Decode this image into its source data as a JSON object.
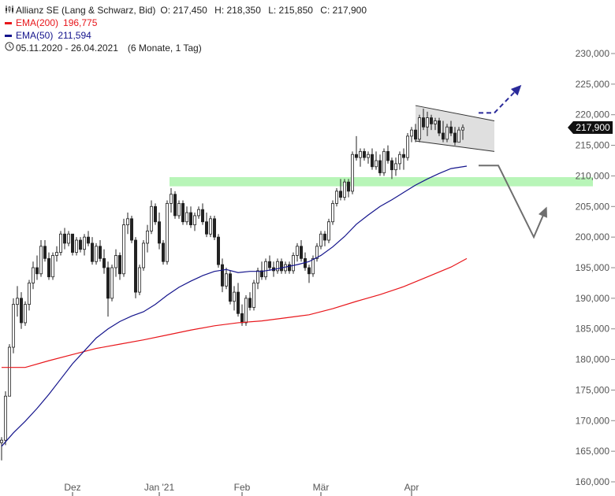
{
  "legend": {
    "instrument": "Allianz SE (Lang & Schwarz, Bid)",
    "ohlc": {
      "o": "O: 217,450",
      "h": "H: 218,350",
      "l": "L: 215,850",
      "c": "C: 217,900"
    },
    "ema200_label": "EMA(200)",
    "ema200_value": "196,775",
    "ema50_label": "EMA(50)",
    "ema50_value": "211,594",
    "period": "05.11.2020 - 26.04.2021",
    "interval": "(6 Monate, 1 Tag)",
    "icons": [
      "candlestick-icon",
      "clock-icon"
    ]
  },
  "colors": {
    "ema200": "#e8161b",
    "ema50": "#14148c",
    "candle": "#222222",
    "support_zone": "#b8f5b8",
    "channel": "#d9d9d9",
    "bull_arrow": "#2a2a9a",
    "bear_arrow": "#6e6e6e",
    "price_tag_bg": "#111111",
    "price_tag_text": "#ffffff"
  },
  "chart_data": {
    "type": "line",
    "title": "Allianz SE (Lang & Schwarz, Bid)",
    "xlabel": "",
    "ylabel": "",
    "ylim": [
      160000,
      230000
    ],
    "yticks": [
      {
        "value": 160000,
        "label": "160,000"
      },
      {
        "value": 165000,
        "label": "165,000"
      },
      {
        "value": 170000,
        "label": "170,000"
      },
      {
        "value": 175000,
        "label": "175,000"
      },
      {
        "value": 180000,
        "label": "180,000"
      },
      {
        "value": 185000,
        "label": "185,000"
      },
      {
        "value": 190000,
        "label": "190,000"
      },
      {
        "value": 195000,
        "label": "195,000"
      },
      {
        "value": 200000,
        "label": "200,000"
      },
      {
        "value": 205000,
        "label": "205,000"
      },
      {
        "value": 210000,
        "label": "210,000"
      },
      {
        "value": 215000,
        "label": "215,000"
      },
      {
        "value": 220000,
        "label": "220,000"
      },
      {
        "value": 225000,
        "label": "225,000"
      },
      {
        "value": 230000,
        "label": "230,000"
      }
    ],
    "xticks": [
      {
        "index": 18,
        "label": "Dez"
      },
      {
        "index": 40,
        "label": "Jan '21"
      },
      {
        "index": 61,
        "label": "Feb"
      },
      {
        "index": 81,
        "label": "Mär"
      },
      {
        "index": 104,
        "label": "Apr"
      }
    ],
    "n_days": 118,
    "price_tag": {
      "value": 217900,
      "label": "217,900"
    },
    "candles": [
      [
        166.4,
        167.3,
        163.5,
        166.8
      ],
      [
        166.8,
        174.8,
        166.0,
        174.0
      ],
      [
        174.0,
        182.5,
        174.0,
        182.0
      ],
      [
        182.0,
        190.0,
        181.0,
        189.0
      ],
      [
        189.0,
        192.0,
        187.0,
        190.0
      ],
      [
        190.0,
        191.0,
        185.0,
        186.0
      ],
      [
        186.0,
        189.5,
        185.5,
        189.0
      ],
      [
        189.0,
        193.0,
        188.0,
        192.5
      ],
      [
        192.5,
        196.0,
        191.5,
        195.0
      ],
      [
        195.0,
        197.0,
        193.0,
        194.0
      ],
      [
        194.0,
        199.5,
        193.5,
        198.5
      ],
      [
        198.5,
        199.5,
        196.0,
        196.5
      ],
      [
        196.5,
        197.5,
        193.0,
        193.5
      ],
      [
        193.5,
        197.5,
        193.0,
        197.0
      ],
      [
        197.0,
        198.5,
        196.0,
        197.5
      ],
      [
        197.5,
        201.0,
        197.0,
        200.5
      ],
      [
        200.5,
        201.5,
        198.0,
        199.0
      ],
      [
        199.0,
        201.0,
        198.5,
        200.5
      ],
      [
        200.5,
        200.5,
        197.0,
        197.5
      ],
      [
        197.5,
        200.0,
        197.0,
        199.5
      ],
      [
        199.5,
        200.0,
        197.5,
        198.0
      ],
      [
        198.0,
        200.5,
        197.0,
        200.0
      ],
      [
        200.0,
        201.0,
        198.5,
        199.0
      ],
      [
        199.0,
        200.0,
        195.5,
        196.0
      ],
      [
        196.0,
        199.0,
        195.5,
        198.5
      ],
      [
        198.5,
        199.5,
        196.0,
        196.5
      ],
      [
        196.5,
        198.0,
        194.0,
        195.0
      ],
      [
        195.0,
        196.0,
        187.0,
        190.0
      ],
      [
        190.0,
        195.5,
        189.5,
        195.0
      ],
      [
        195.0,
        198.0,
        193.5,
        197.0
      ],
      [
        197.0,
        197.5,
        193.0,
        194.0
      ],
      [
        194.0,
        203.0,
        193.5,
        202.0
      ],
      [
        202.0,
        204.0,
        200.5,
        203.0
      ],
      [
        203.0,
        203.5,
        199.0,
        199.5
      ],
      [
        199.5,
        200.0,
        190.0,
        191.0
      ],
      [
        191.0,
        195.5,
        190.5,
        195.0
      ],
      [
        195.0,
        199.5,
        194.5,
        199.0
      ],
      [
        199.0,
        202.0,
        197.5,
        201.0
      ],
      [
        201.0,
        206.0,
        200.5,
        205.0
      ],
      [
        205.0,
        205.5,
        202.0,
        202.5
      ],
      [
        202.5,
        204.0,
        198.0,
        199.0
      ],
      [
        199.0,
        199.5,
        195.5,
        196.0
      ],
      [
        196.0,
        206.0,
        195.5,
        205.5
      ],
      [
        205.5,
        208.0,
        204.0,
        207.0
      ],
      [
        207.0,
        207.5,
        203.0,
        203.5
      ],
      [
        203.5,
        206.0,
        203.0,
        205.5
      ],
      [
        205.5,
        206.0,
        202.0,
        202.5
      ],
      [
        202.5,
        205.0,
        202.0,
        204.0
      ],
      [
        204.0,
        205.0,
        201.5,
        202.0
      ],
      [
        202.0,
        204.0,
        201.0,
        203.5
      ],
      [
        203.5,
        205.0,
        203.0,
        204.5
      ],
      [
        204.5,
        205.5,
        202.0,
        202.5
      ],
      [
        202.5,
        204.0,
        200.0,
        200.5
      ],
      [
        200.5,
        203.5,
        200.0,
        203.0
      ],
      [
        203.0,
        203.5,
        199.5,
        200.0
      ],
      [
        200.0,
        200.5,
        195.0,
        195.5
      ],
      [
        195.5,
        196.5,
        191.0,
        192.0
      ],
      [
        192.0,
        195.0,
        191.5,
        194.0
      ],
      [
        194.0,
        194.5,
        189.0,
        189.5
      ],
      [
        189.5,
        192.0,
        188.0,
        191.0
      ],
      [
        191.0,
        192.5,
        187.0,
        187.5
      ],
      [
        187.5,
        189.0,
        185.5,
        186.0
      ],
      [
        186.0,
        190.5,
        185.5,
        190.0
      ],
      [
        190.0,
        191.0,
        188.0,
        188.5
      ],
      [
        188.5,
        193.0,
        188.0,
        192.5
      ],
      [
        192.5,
        195.0,
        191.5,
        194.5
      ],
      [
        194.5,
        196.0,
        193.0,
        193.5
      ],
      [
        193.5,
        196.5,
        193.0,
        196.0
      ],
      [
        196.0,
        197.0,
        194.5,
        195.0
      ],
      [
        195.0,
        196.0,
        193.5,
        194.5
      ],
      [
        194.5,
        196.5,
        194.0,
        196.0
      ],
      [
        196.0,
        196.5,
        194.0,
        194.5
      ],
      [
        194.5,
        196.0,
        194.0,
        195.5
      ],
      [
        195.5,
        196.0,
        194.0,
        194.5
      ],
      [
        194.5,
        197.5,
        194.0,
        197.0
      ],
      [
        197.0,
        199.0,
        196.0,
        198.5
      ],
      [
        198.5,
        199.5,
        196.0,
        196.5
      ],
      [
        196.5,
        197.5,
        194.5,
        195.0
      ],
      [
        195.0,
        195.5,
        192.5,
        194.0
      ],
      [
        194.0,
        197.0,
        193.5,
        196.5
      ],
      [
        196.5,
        199.0,
        196.0,
        198.5
      ],
      [
        198.5,
        201.0,
        198.0,
        200.5
      ],
      [
        200.5,
        201.0,
        198.5,
        199.5
      ],
      [
        199.5,
        203.0,
        199.0,
        202.5
      ],
      [
        202.5,
        206.0,
        202.0,
        205.5
      ],
      [
        205.5,
        208.0,
        205.0,
        207.5
      ],
      [
        207.5,
        209.5,
        206.0,
        206.5
      ],
      [
        206.5,
        209.5,
        206.0,
        209.0
      ],
      [
        209.0,
        209.5,
        206.5,
        207.5
      ],
      [
        207.5,
        214.0,
        207.0,
        213.5
      ],
      [
        213.5,
        216.5,
        212.5,
        213.0
      ],
      [
        213.0,
        214.5,
        211.5,
        214.0
      ],
      [
        214.0,
        214.5,
        212.5,
        213.0
      ],
      [
        213.0,
        214.0,
        212.0,
        213.5
      ],
      [
        213.5,
        214.5,
        211.0,
        211.5
      ],
      [
        211.5,
        214.0,
        211.0,
        212.5
      ],
      [
        212.5,
        213.5,
        210.0,
        210.5
      ],
      [
        210.5,
        214.5,
        210.0,
        214.0
      ],
      [
        214.0,
        215.0,
        212.0,
        212.5
      ],
      [
        212.5,
        213.0,
        209.5,
        211.0
      ],
      [
        211.0,
        213.0,
        210.0,
        212.0
      ],
      [
        212.0,
        214.0,
        211.0,
        213.5
      ],
      [
        213.5,
        214.5,
        211.0,
        213.0
      ],
      [
        213.0,
        217.0,
        212.5,
        216.5
      ],
      [
        216.5,
        218.0,
        215.5,
        217.5
      ],
      [
        217.5,
        218.5,
        215.5,
        216.0
      ],
      [
        216.0,
        220.0,
        215.5,
        219.5
      ],
      [
        219.5,
        221.0,
        217.5,
        218.0
      ],
      [
        218.0,
        220.5,
        216.5,
        219.5
      ],
      [
        219.5,
        220.0,
        217.5,
        218.5
      ],
      [
        218.5,
        219.5,
        217.5,
        219.0
      ],
      [
        219.0,
        219.5,
        216.5,
        217.0
      ],
      [
        217.0,
        219.0,
        215.5,
        216.0
      ],
      [
        216.0,
        218.5,
        215.5,
        218.0
      ],
      [
        218.0,
        219.0,
        216.5,
        217.0
      ],
      [
        217.0,
        218.0,
        215.0,
        215.5
      ],
      [
        215.5,
        218.0,
        215.5,
        217.5
      ],
      [
        217.5,
        218.4,
        215.9,
        217.9
      ]
    ],
    "ema200": [
      [
        0,
        178.7
      ],
      [
        6,
        178.7
      ],
      [
        12,
        179.8
      ],
      [
        18,
        180.8
      ],
      [
        24,
        181.8
      ],
      [
        30,
        182.5
      ],
      [
        36,
        183.2
      ],
      [
        42,
        184.0
      ],
      [
        48,
        184.8
      ],
      [
        54,
        185.5
      ],
      [
        60,
        186.0
      ],
      [
        66,
        186.3
      ],
      [
        72,
        186.8
      ],
      [
        78,
        187.3
      ],
      [
        84,
        188.3
      ],
      [
        90,
        189.5
      ],
      [
        96,
        190.6
      ],
      [
        102,
        191.9
      ],
      [
        108,
        193.5
      ],
      [
        114,
        195.1
      ],
      [
        118,
        196.5
      ]
    ],
    "ema50": [
      [
        0,
        165.8
      ],
      [
        3,
        168.0
      ],
      [
        6,
        169.9
      ],
      [
        9,
        172.0
      ],
      [
        12,
        174.3
      ],
      [
        15,
        176.8
      ],
      [
        18,
        179.3
      ],
      [
        21,
        181.4
      ],
      [
        24,
        183.5
      ],
      [
        27,
        185.0
      ],
      [
        30,
        186.2
      ],
      [
        33,
        187.1
      ],
      [
        36,
        187.8
      ],
      [
        39,
        189.0
      ],
      [
        42,
        190.5
      ],
      [
        45,
        191.8
      ],
      [
        48,
        192.8
      ],
      [
        51,
        193.7
      ],
      [
        54,
        194.4
      ],
      [
        57,
        194.7
      ],
      [
        60,
        194.2
      ],
      [
        63,
        194.4
      ],
      [
        66,
        194.4
      ],
      [
        69,
        194.7
      ],
      [
        72,
        195.1
      ],
      [
        75,
        195.5
      ],
      [
        78,
        196.0
      ],
      [
        81,
        197.0
      ],
      [
        84,
        198.4
      ],
      [
        87,
        200.1
      ],
      [
        90,
        202.1
      ],
      [
        93,
        203.6
      ],
      [
        96,
        205.0
      ],
      [
        99,
        206.1
      ],
      [
        102,
        207.3
      ],
      [
        105,
        208.5
      ],
      [
        108,
        209.5
      ],
      [
        111,
        210.4
      ],
      [
        114,
        211.2
      ],
      [
        118,
        211.6
      ]
    ],
    "annotations": {
      "support_zone": {
        "ymin": 208.3,
        "ymax": 209.8,
        "x_from": 43,
        "x_to": 146
      },
      "channel": {
        "x_from": 105,
        "x_to": 125,
        "upper": [
          221.5,
          219.0
        ],
        "lower": [
          215.7,
          214.0
        ]
      },
      "bull_scenario": [
        [
          121,
          220.3
        ],
        [
          125,
          220.3
        ],
        [
          131,
          224.3
        ],
        [
          131.3,
          224.5
        ]
      ],
      "bear_scenario": [
        [
          121,
          211.7
        ],
        [
          126,
          211.7
        ],
        [
          135,
          200.0
        ],
        [
          138,
          204.5
        ]
      ]
    }
  }
}
